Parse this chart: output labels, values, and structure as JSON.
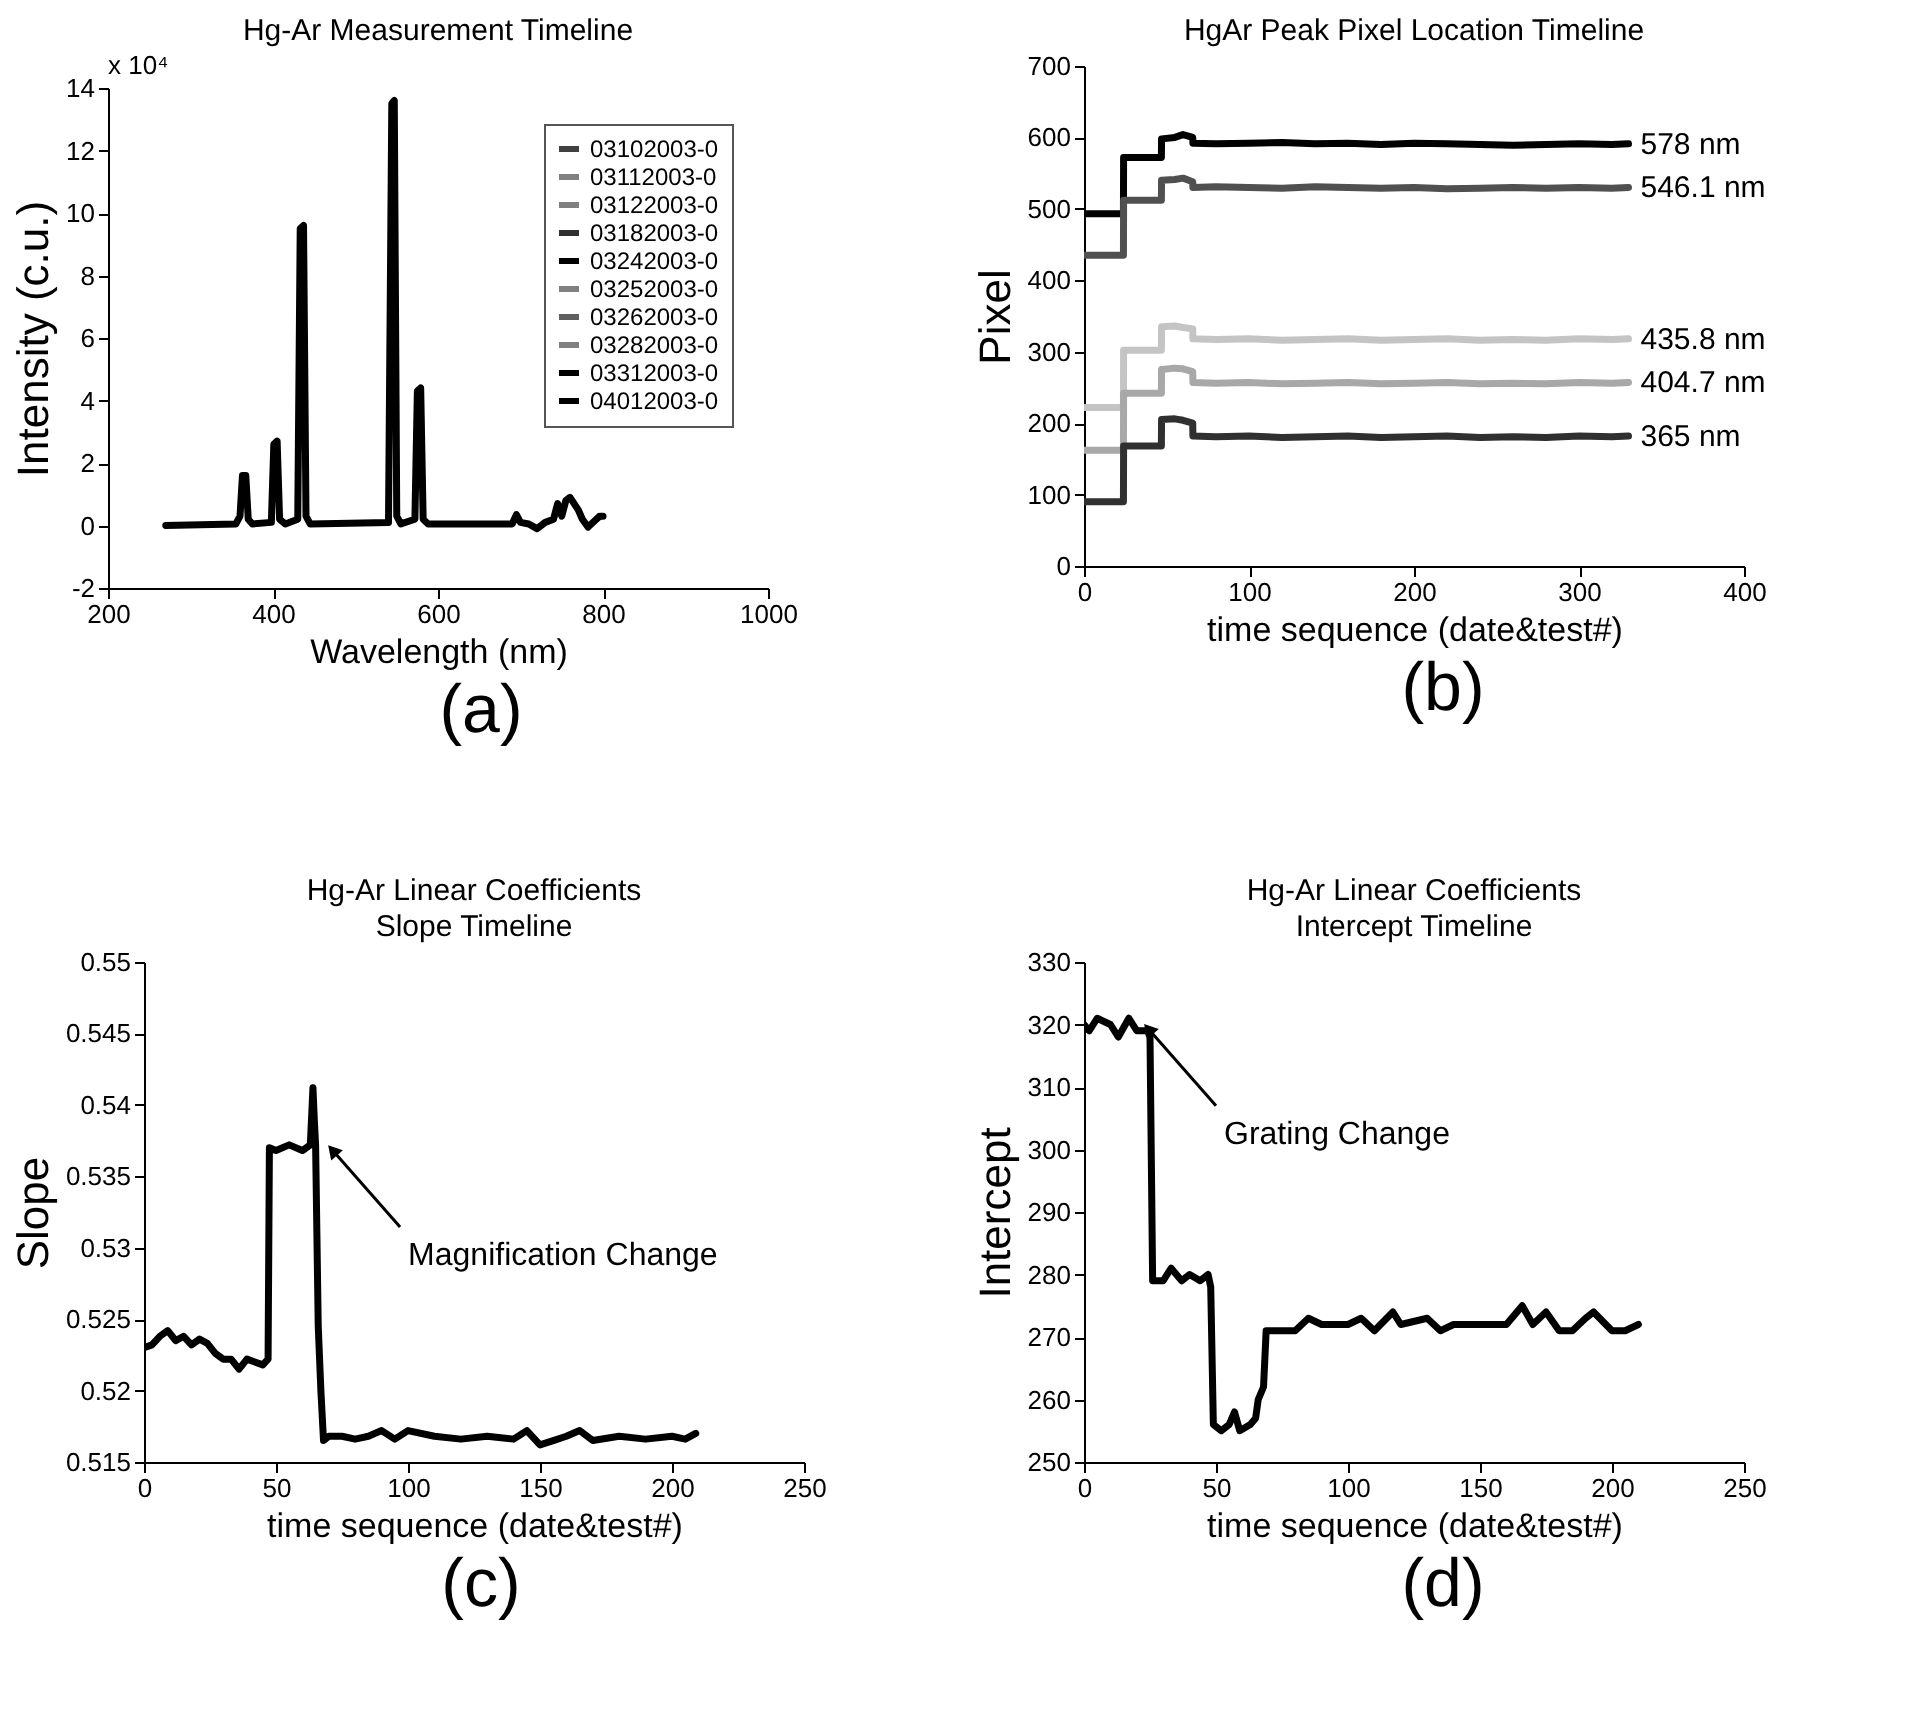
{
  "chart_data": [
    {
      "type": "line",
      "title": "Hg-Ar Measurement Timeline",
      "xlabel": "Wavelength (nm)",
      "ylabel": "Intensity (c.u.)",
      "xlim": [
        200,
        1000
      ],
      "xticks": [
        200,
        400,
        600,
        800,
        1000
      ],
      "ylim": [
        -2,
        14
      ],
      "yticks": [
        -2,
        0,
        2,
        4,
        6,
        8,
        10,
        12,
        14
      ],
      "legend": "top right",
      "annotations": [
        "x 10⁴",
        "(a)"
      ],
      "x": [
        270,
        355,
        360,
        363,
        367,
        370,
        375,
        398,
        401,
        405,
        408,
        415,
        430,
        433,
        437,
        440,
        445,
        540,
        544,
        547,
        550,
        555,
        572,
        575,
        579,
        582,
        588,
        690,
        695,
        700,
        710,
        720,
        730,
        740,
        745,
        750,
        755,
        760,
        765,
        770,
        775,
        782,
        790,
        796,
        800
      ],
      "series": [
        {
          "name": "03102003-0",
          "color": "#404040",
          "values": [
            null,
            null,
            null,
            null,
            null,
            null,
            null,
            null,
            null,
            null,
            null,
            null,
            null,
            null,
            null,
            null,
            null,
            null,
            null,
            null,
            null,
            null,
            null,
            null,
            null,
            null,
            null,
            null,
            null,
            null,
            null,
            null,
            null,
            null,
            null,
            null,
            null,
            null,
            null,
            null,
            null,
            null,
            null,
            null,
            null
          ]
        },
        {
          "name": "03112003-0",
          "color": "#808080",
          "values": [
            null,
            null,
            null,
            null,
            null,
            null,
            null,
            null,
            null,
            null,
            null,
            null,
            null,
            null,
            null,
            null,
            null,
            null,
            null,
            null,
            null,
            null,
            null,
            null,
            null,
            null,
            null,
            null,
            null,
            null,
            null,
            null,
            null,
            null,
            null,
            null,
            null,
            null,
            null,
            null,
            null,
            null,
            null,
            null,
            null
          ]
        },
        {
          "name": "03122003-0",
          "color": "#808080",
          "values": [
            null,
            null,
            null,
            null,
            null,
            null,
            null,
            null,
            null,
            null,
            null,
            null,
            null,
            null,
            null,
            null,
            null,
            null,
            null,
            null,
            null,
            null,
            null,
            null,
            null,
            null,
            null,
            null,
            null,
            null,
            null,
            null,
            null,
            null,
            null,
            null,
            null,
            null,
            null,
            null,
            null,
            null,
            null,
            null,
            null
          ]
        },
        {
          "name": "03182003-0",
          "color": "#303030",
          "values": [
            null,
            null,
            null,
            null,
            null,
            null,
            null,
            null,
            null,
            null,
            null,
            null,
            null,
            null,
            null,
            null,
            null,
            null,
            null,
            null,
            null,
            null,
            null,
            null,
            null,
            null,
            null,
            null,
            null,
            null,
            null,
            null,
            null,
            null,
            null,
            null,
            null,
            null,
            null,
            null,
            null,
            null,
            null,
            null,
            null
          ]
        },
        {
          "name": "03242003-0",
          "color": "#000000",
          "values": [
            null,
            null,
            null,
            null,
            null,
            null,
            null,
            null,
            null,
            null,
            null,
            null,
            null,
            null,
            null,
            null,
            null,
            null,
            null,
            null,
            null,
            null,
            null,
            null,
            null,
            null,
            null,
            null,
            null,
            null,
            null,
            null,
            null,
            null,
            null,
            null,
            null,
            null,
            null,
            null,
            null,
            null,
            null,
            null,
            null
          ]
        },
        {
          "name": "03252003-0",
          "color": "#808080",
          "values": [
            null,
            null,
            null,
            null,
            null,
            null,
            null,
            null,
            null,
            null,
            null,
            null,
            null,
            null,
            null,
            null,
            null,
            null,
            null,
            null,
            null,
            null,
            null,
            null,
            null,
            null,
            null,
            null,
            null,
            null,
            null,
            null,
            null,
            null,
            null,
            null,
            null,
            null,
            null,
            null,
            null,
            null,
            null,
            null,
            null
          ]
        },
        {
          "name": "03262003-0",
          "color": "#606060",
          "values": [
            null,
            null,
            null,
            null,
            null,
            null,
            null,
            null,
            null,
            null,
            null,
            null,
            null,
            null,
            null,
            null,
            null,
            null,
            null,
            null,
            null,
            null,
            null,
            null,
            null,
            null,
            null,
            null,
            null,
            null,
            null,
            null,
            null,
            null,
            null,
            null,
            null,
            null,
            null,
            null,
            null,
            null,
            null,
            null,
            null
          ]
        },
        {
          "name": "03282003-0",
          "color": "#808080",
          "values": [
            null,
            null,
            null,
            null,
            null,
            null,
            null,
            null,
            null,
            null,
            null,
            null,
            null,
            null,
            null,
            null,
            null,
            null,
            null,
            null,
            null,
            null,
            null,
            null,
            null,
            null,
            null,
            null,
            null,
            null,
            null,
            null,
            null,
            null,
            null,
            null,
            null,
            null,
            null,
            null,
            null,
            null,
            null,
            null,
            null
          ]
        },
        {
          "name": "03312003-0",
          "color": "#000000",
          "values": [
            null,
            null,
            null,
            null,
            null,
            null,
            null,
            null,
            null,
            null,
            null,
            null,
            null,
            null,
            null,
            null,
            null,
            null,
            null,
            null,
            null,
            null,
            null,
            null,
            null,
            null,
            null,
            null,
            null,
            null,
            null,
            null,
            null,
            null,
            null,
            null,
            null,
            null,
            null,
            null,
            null,
            null,
            null,
            null,
            null
          ]
        },
        {
          "name": "04012003-0",
          "color": "#000000",
          "values": [
            0,
            0.05,
            0.3,
            1.6,
            1.6,
            0.2,
            0.05,
            0.1,
            2.6,
            2.7,
            0.2,
            0.05,
            0.2,
            9.5,
            9.6,
            0.3,
            0.05,
            0.1,
            13.5,
            13.6,
            0.3,
            0.05,
            0.2,
            4.3,
            4.4,
            0.2,
            0.05,
            0.05,
            0.35,
            0.1,
            0.05,
            -0.1,
            0.1,
            0.2,
            0.7,
            0.3,
            0.8,
            0.9,
            0.7,
            0.5,
            0.2,
            -0.05,
            0.15,
            0.3,
            0.3
          ]
        }
      ]
    },
    {
      "type": "line",
      "title": "HgAr Peak Pixel Location Timeline",
      "xlabel": "time sequence (date&test#)",
      "ylabel": "Pixel",
      "xlim": [
        0,
        400
      ],
      "xticks": [
        0,
        100,
        200,
        300,
        400
      ],
      "ylim": [
        0,
        700
      ],
      "yticks": [
        0,
        100,
        200,
        300,
        400,
        500,
        600,
        700
      ],
      "annotations": [
        "(b)"
      ],
      "x": [
        0,
        23.9,
        24,
        46.9,
        47,
        55,
        60,
        65.9,
        66,
        80,
        100,
        120,
        140,
        160,
        180,
        200,
        220,
        240,
        260,
        280,
        300,
        320,
        330
      ],
      "series": [
        {
          "name": "578 nm",
          "color": "#000000",
          "values": [
            493,
            493,
            572,
            572,
            598,
            600,
            604,
            600,
            592,
            591,
            592,
            593,
            591,
            592,
            590,
            592,
            591,
            590,
            589,
            590,
            591,
            590,
            591
          ]
        },
        {
          "name": "546.1 nm",
          "color": "#505050",
          "values": [
            435,
            435,
            512,
            512,
            540,
            541,
            543,
            538,
            530,
            531,
            530,
            529,
            531,
            530,
            529,
            530,
            528,
            529,
            530,
            529,
            530,
            529,
            530
          ]
        },
        {
          "name": "435.8 nm",
          "color": "#c4c4c4",
          "values": [
            222,
            222,
            302,
            302,
            335,
            336,
            334,
            332,
            318,
            317,
            318,
            316,
            317,
            318,
            316,
            317,
            318,
            316,
            317,
            316,
            318,
            317,
            318
          ]
        },
        {
          "name": "404.7 nm",
          "color": "#a8a8a8",
          "values": [
            162,
            162,
            242,
            242,
            275,
            277,
            276,
            272,
            257,
            256,
            257,
            255,
            256,
            257,
            255,
            256,
            257,
            255,
            256,
            255,
            257,
            256,
            257
          ]
        },
        {
          "name": "365 nm",
          "color": "#303030",
          "values": [
            90,
            90,
            168,
            168,
            205,
            206,
            204,
            200,
            182,
            181,
            182,
            180,
            181,
            182,
            180,
            181,
            182,
            180,
            181,
            180,
            182,
            181,
            182
          ]
        }
      ]
    },
    {
      "type": "line",
      "title": "Hg-Ar Linear Coefficients",
      "subtitle": "Slope Timeline",
      "xlabel": "time sequence (date&test#)",
      "ylabel": "Slope",
      "xlim": [
        0,
        250
      ],
      "xticks": [
        0,
        50,
        100,
        150,
        200,
        250
      ],
      "ylim": [
        0.515,
        0.55
      ],
      "yticks": [
        0.515,
        0.52,
        0.525,
        0.53,
        0.535,
        0.54,
        0.545,
        0.55
      ],
      "annotations": [
        {
          "text": "Magnification Change",
          "x": 72,
          "y": 0.5367
        },
        "(c)"
      ],
      "x": [
        0,
        3,
        6,
        9,
        12,
        15,
        18,
        21,
        24,
        27,
        30,
        33,
        36,
        39,
        42,
        45,
        47,
        47.5,
        50,
        55,
        60,
        63,
        64,
        64.5,
        65,
        66,
        67,
        68,
        70,
        75,
        80,
        85,
        90,
        95,
        100,
        110,
        120,
        130,
        140,
        145,
        150,
        155,
        160,
        165,
        170,
        180,
        190,
        200,
        205,
        209
      ],
      "series": [
        {
          "color": "#000000",
          "values": [
            0.523,
            0.5232,
            0.5238,
            0.5242,
            0.5235,
            0.5238,
            0.5232,
            0.5236,
            0.5233,
            0.5226,
            0.5222,
            0.5222,
            0.5215,
            0.5222,
            0.522,
            0.5218,
            0.5222,
            0.537,
            0.5368,
            0.5372,
            0.5368,
            0.5372,
            0.5412,
            0.539,
            0.5372,
            0.5245,
            0.52,
            0.5165,
            0.5168,
            0.5168,
            0.5166,
            0.5168,
            0.5172,
            0.5166,
            0.5172,
            0.5168,
            0.5166,
            0.5168,
            0.5166,
            0.5172,
            0.5162,
            0.5165,
            0.5168,
            0.5172,
            0.5165,
            0.5168,
            0.5166,
            0.5168,
            0.5166,
            0.517
          ]
        }
      ]
    },
    {
      "type": "line",
      "title": "Hg-Ar Linear Coefficients",
      "subtitle": "Intercept Timeline",
      "xlabel": "time sequence (date&test#)",
      "ylabel": "Intercept",
      "xlim": [
        0,
        250
      ],
      "xticks": [
        0,
        50,
        100,
        150,
        200,
        250
      ],
      "ylim": [
        250,
        330
      ],
      "yticks": [
        250,
        260,
        270,
        280,
        290,
        300,
        310,
        320,
        330
      ],
      "annotations": [
        {
          "text": "Grating Change",
          "x": 25,
          "y": 319
        },
        "(d)"
      ],
      "x": [
        0,
        2,
        5,
        10,
        13,
        17,
        20,
        24,
        25,
        26,
        30,
        33,
        37,
        40,
        44,
        47,
        48,
        49,
        52,
        55,
        57,
        59,
        63,
        65,
        66,
        68,
        69,
        75,
        80,
        85,
        90,
        100,
        105,
        110,
        117,
        120,
        130,
        135,
        140,
        150,
        160,
        166,
        170,
        175,
        180,
        185,
        190,
        193,
        200,
        205,
        210
      ],
      "series": [
        {
          "color": "#000000",
          "values": [
            320,
            319,
            321,
            320,
            318,
            321,
            319,
            319,
            318,
            279,
            279,
            281,
            279,
            280,
            279,
            280,
            278,
            256,
            255,
            256,
            258,
            255,
            256,
            257,
            260,
            262,
            271,
            271,
            271,
            273,
            272,
            272,
            273,
            271,
            274,
            272,
            273,
            271,
            272,
            272,
            272,
            275,
            272,
            274,
            271,
            271,
            273,
            274,
            271,
            271,
            272
          ]
        }
      ]
    }
  ]
}
